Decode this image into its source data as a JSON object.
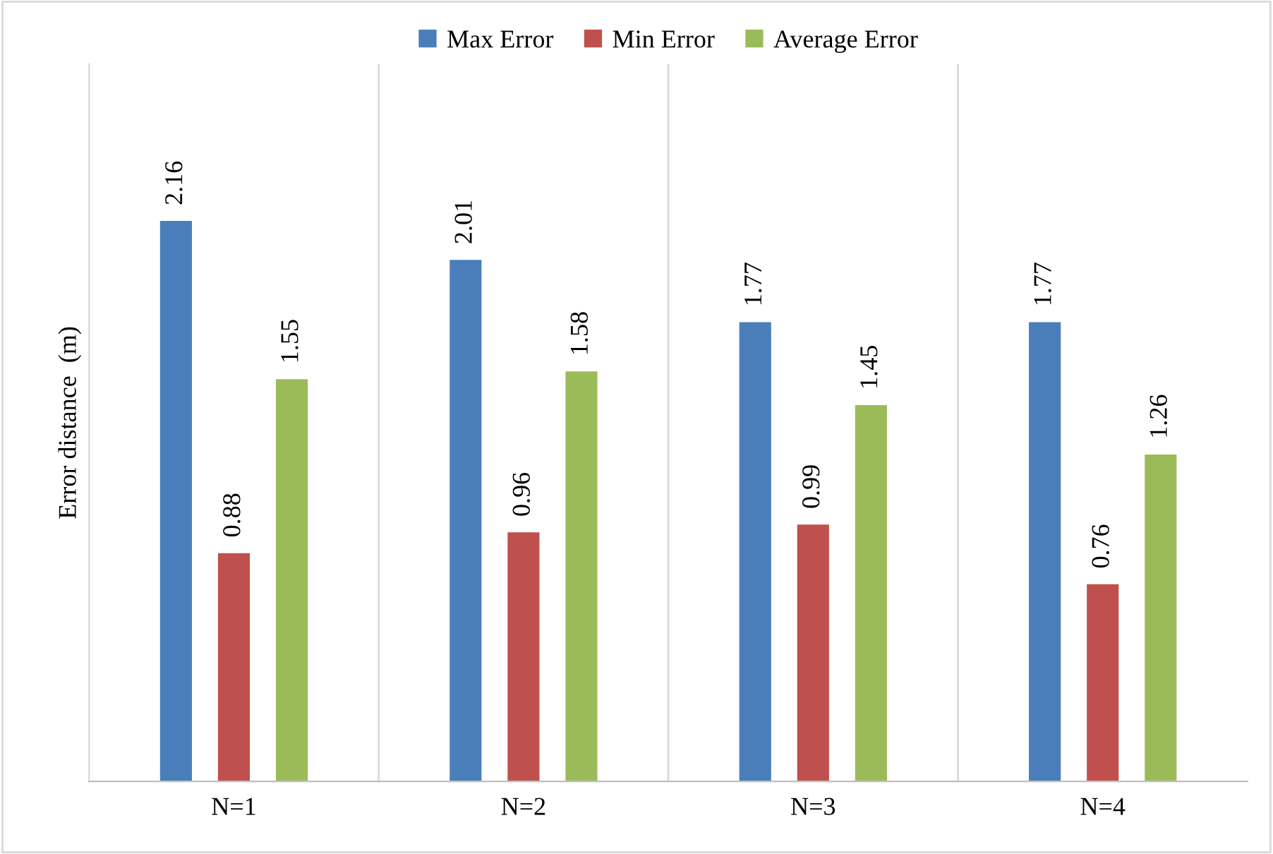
{
  "chart_data": {
    "type": "bar",
    "ylabel": "Error distance  (m)",
    "categories": [
      "N=1",
      "N=2",
      "N=3",
      "N=4"
    ],
    "series": [
      {
        "name": "Max Error",
        "color": "#4a7ebb",
        "values": [
          2.16,
          2.01,
          1.77,
          1.77
        ]
      },
      {
        "name": "Min Error",
        "color": "#c0504d",
        "values": [
          0.88,
          0.96,
          0.99,
          0.76
        ]
      },
      {
        "name": "Average Error",
        "color": "#9bbb59",
        "values": [
          1.55,
          1.58,
          1.45,
          1.26
        ]
      }
    ],
    "data_labels": true,
    "legend": "top",
    "grid": "x",
    "tick_labels": "x"
  }
}
